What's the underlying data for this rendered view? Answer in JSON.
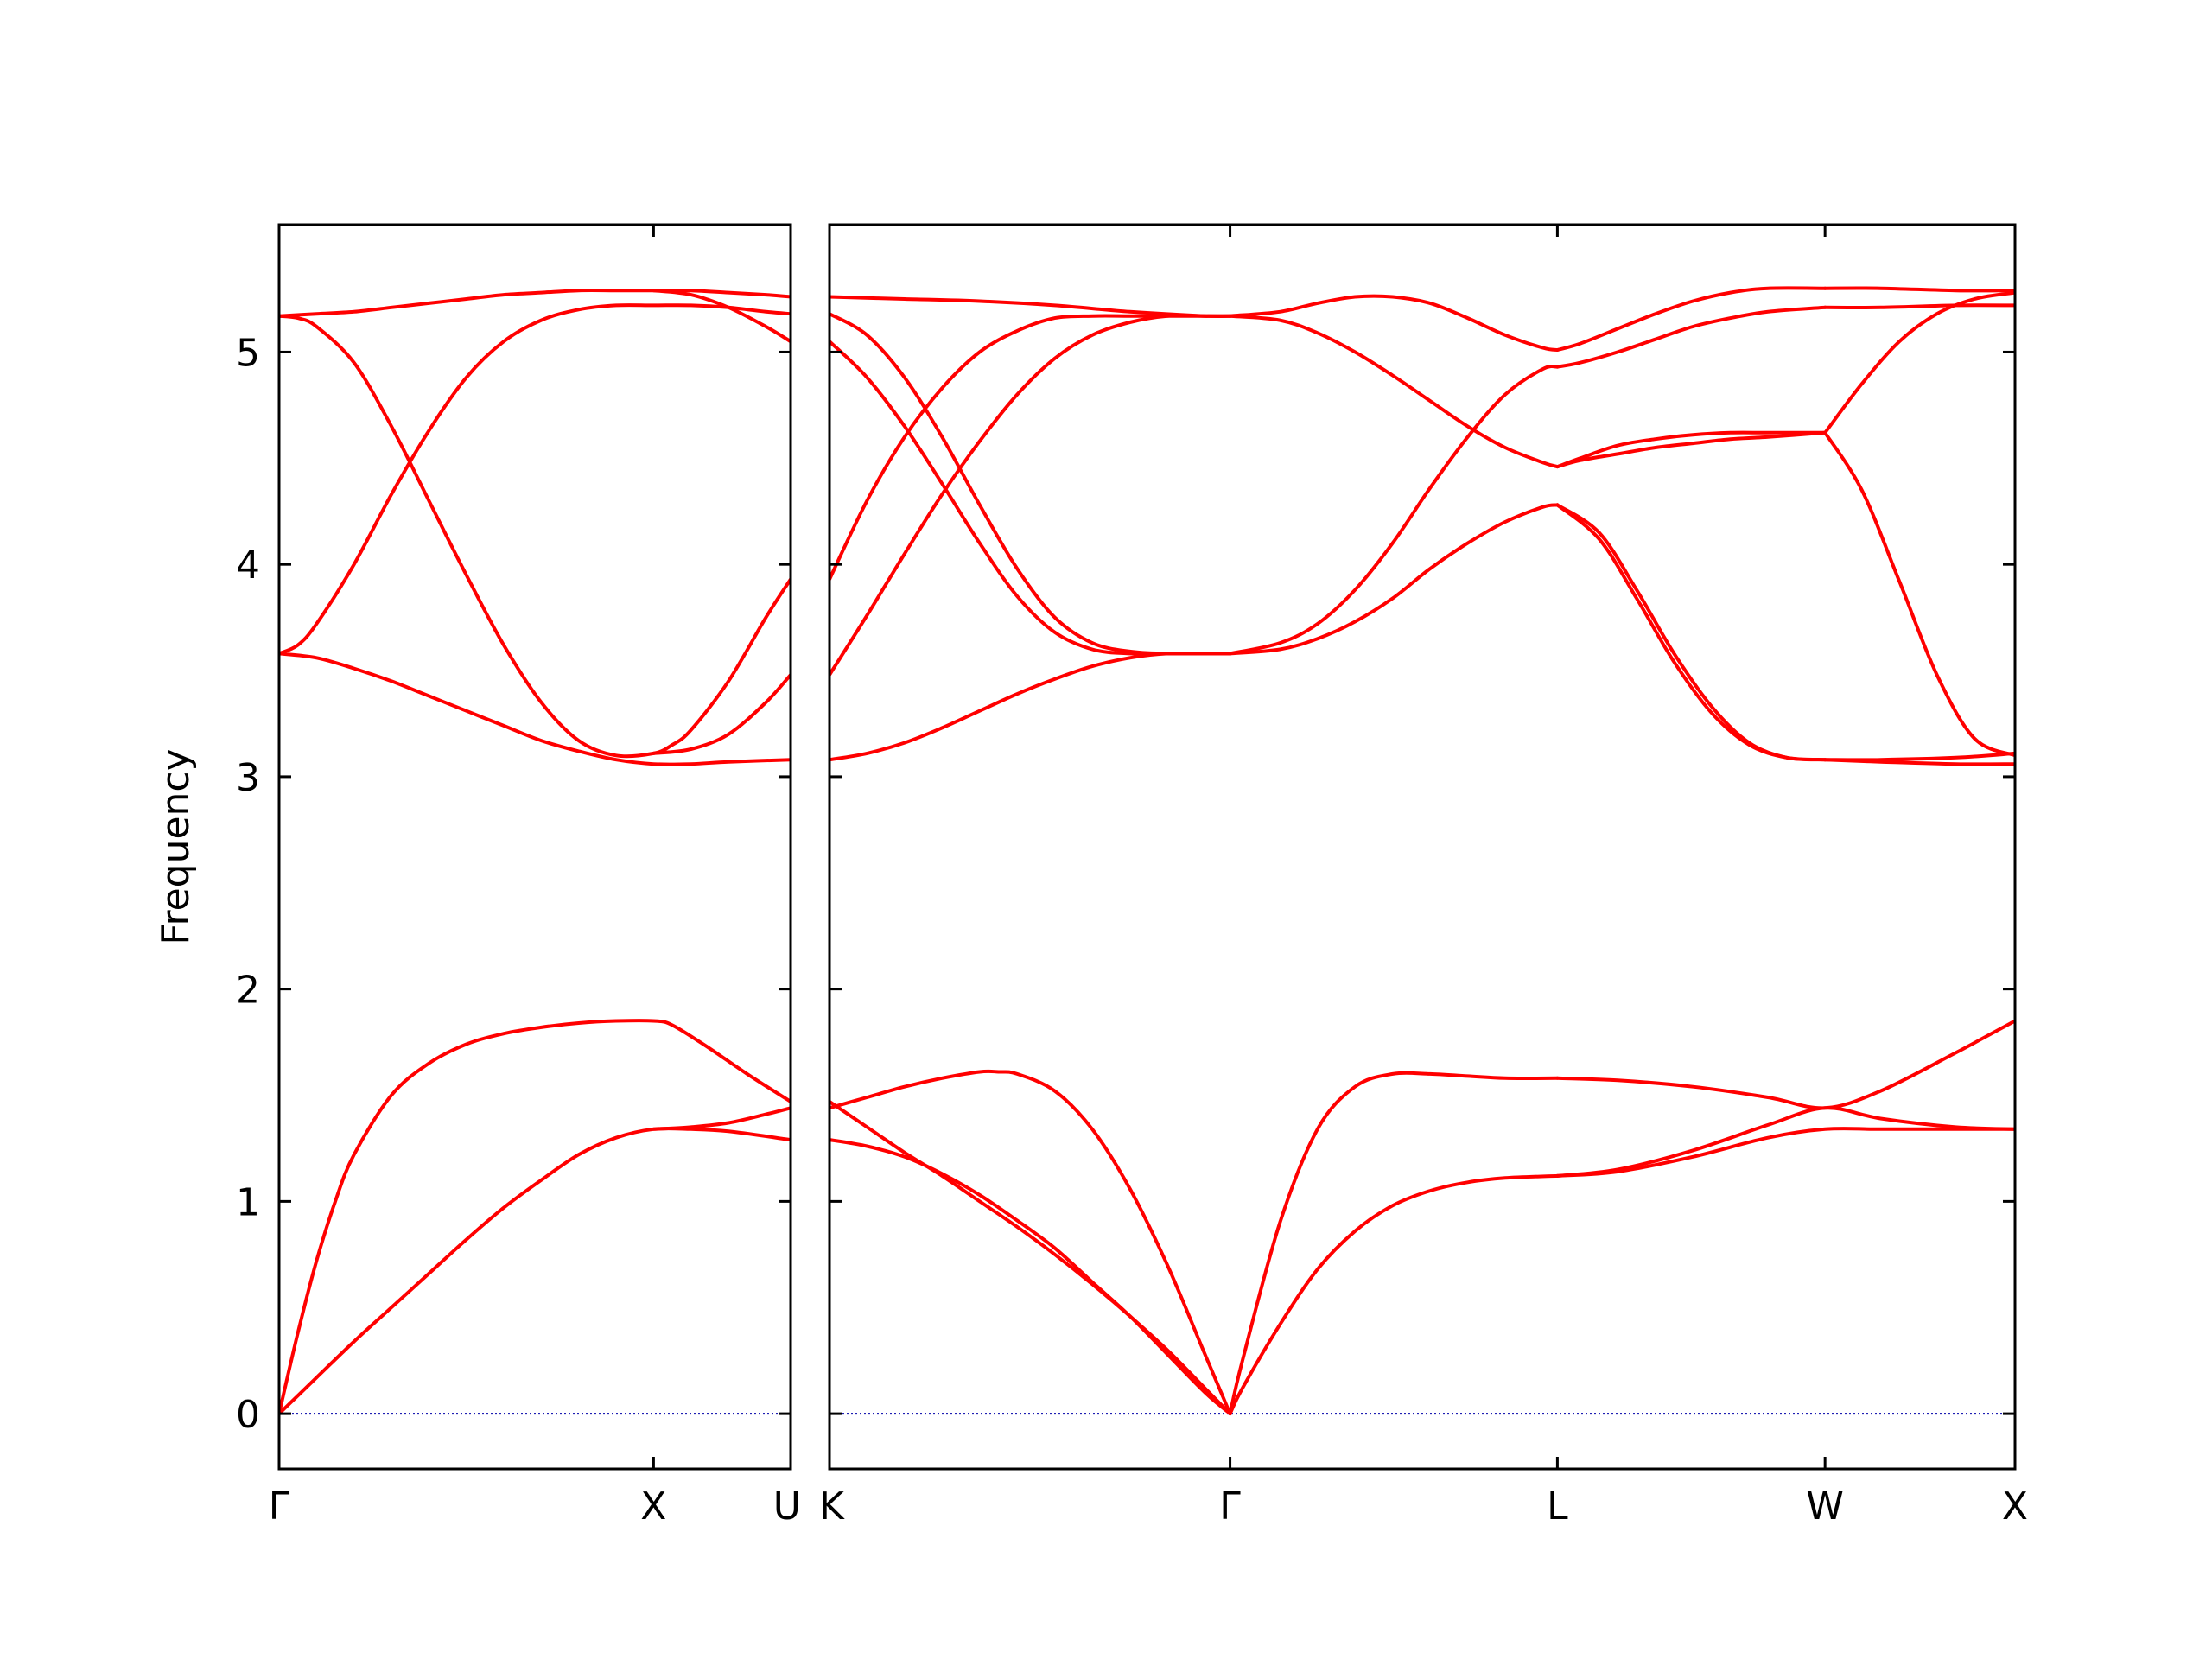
{
  "chart_data": {
    "type": "line",
    "title": "",
    "ylabel": "Frequency",
    "xlabel": "",
    "ylim": [
      -0.26,
      5.6
    ],
    "y_ticks": [
      "0",
      "1",
      "2",
      "3",
      "4",
      "5"
    ],
    "line_color": "#ff0000",
    "zero_line_color": "#0000aa",
    "panels": [
      {
        "xlim": [
          0,
          1.366
        ],
        "high_symmetry_points": [
          {
            "label": "Γ",
            "x": 0
          },
          {
            "label": "X",
            "x": 1.0
          },
          {
            "label": "U",
            "x": 1.366
          }
        ],
        "series": [
          {
            "x": [
              0,
              0.1,
              0.2,
              0.3,
              0.4,
              0.5,
              0.6,
              0.7,
              0.8,
              0.9,
              1.0,
              1.1,
              1.2,
              1.366
            ],
            "values": [
              0,
              0.17,
              0.34,
              0.5,
              0.66,
              0.82,
              0.97,
              1.1,
              1.22,
              1.3,
              1.34,
              1.34,
              1.33,
              1.29
            ]
          },
          {
            "x": [
              0,
              0.05,
              0.1,
              0.15,
              0.2,
              0.3,
              0.4,
              0.5,
              0.6,
              0.7,
              0.8,
              0.9,
              1.0,
              1.05,
              1.15,
              1.25,
              1.366
            ],
            "values": [
              0,
              0.38,
              0.72,
              1.0,
              1.22,
              1.5,
              1.65,
              1.74,
              1.79,
              1.82,
              1.84,
              1.85,
              1.85,
              1.83,
              1.72,
              1.6,
              1.47
            ]
          },
          {
            "x": [
              1.0,
              1.1,
              1.2,
              1.3,
              1.366
            ],
            "values": [
              1.34,
              1.35,
              1.37,
              1.41,
              1.44
            ]
          },
          {
            "x": [
              0,
              0.1,
              0.2,
              0.3,
              0.4,
              0.5,
              0.6,
              0.7,
              0.8,
              0.9,
              1.0,
              1.1,
              1.2,
              1.366
            ],
            "values": [
              3.58,
              3.56,
              3.51,
              3.45,
              3.38,
              3.31,
              3.24,
              3.17,
              3.12,
              3.08,
              3.06,
              3.06,
              3.07,
              3.08
            ]
          },
          {
            "x": [
              0,
              0.05,
              0.1,
              0.2,
              0.3,
              0.4,
              0.5,
              0.6,
              0.7,
              0.8,
              0.9,
              1.0,
              1.1,
              1.2,
              1.3,
              1.366
            ],
            "values": [
              3.58,
              3.62,
              3.72,
              4.0,
              4.33,
              4.63,
              4.88,
              5.05,
              5.15,
              5.2,
              5.22,
              5.22,
              5.22,
              5.21,
              5.19,
              5.18
            ]
          },
          {
            "x": [
              0,
              0.05,
              0.1,
              0.2,
              0.3,
              0.4,
              0.5,
              0.6,
              0.7,
              0.8,
              0.9,
              1.0,
              1.05,
              1.1,
              1.2,
              1.3,
              1.366
            ],
            "values": [
              5.17,
              5.16,
              5.12,
              4.95,
              4.65,
              4.3,
              3.95,
              3.62,
              3.35,
              3.17,
              3.1,
              3.11,
              3.15,
              3.22,
              3.45,
              3.75,
              3.93
            ]
          },
          {
            "x": [
              1.0,
              1.1,
              1.2,
              1.3,
              1.366
            ],
            "values": [
              3.11,
              3.13,
              3.2,
              3.35,
              3.48
            ]
          },
          {
            "x": [
              0,
              0.1,
              0.2,
              0.3,
              0.4,
              0.5,
              0.6,
              0.7,
              0.8,
              0.9,
              1.0,
              1.1,
              1.2,
              1.3,
              1.366
            ],
            "values": [
              5.17,
              5.18,
              5.19,
              5.21,
              5.23,
              5.25,
              5.27,
              5.28,
              5.29,
              5.29,
              5.29,
              5.29,
              5.28,
              5.27,
              5.26
            ]
          },
          {
            "x": [
              1.0,
              1.1,
              1.2,
              1.3,
              1.366
            ],
            "values": [
              5.29,
              5.27,
              5.21,
              5.12,
              5.05
            ]
          }
        ]
      },
      {
        "xlim": [
          0,
          3.158
        ],
        "high_symmetry_points": [
          {
            "label": "K",
            "x": 0
          },
          {
            "label": "Γ",
            "x": 1.067
          },
          {
            "label": "L",
            "x": 1.939
          },
          {
            "label": "W",
            "x": 2.652
          },
          {
            "label": "X",
            "x": 3.158
          }
        ],
        "series": [
          {
            "x": [
              0,
              0.1,
              0.2,
              0.3,
              0.4,
              0.5,
              0.6,
              0.7,
              0.8,
              0.9,
              1.0,
              1.067
            ],
            "values": [
              1.29,
              1.26,
              1.21,
              1.13,
              1.03,
              0.91,
              0.78,
              0.62,
              0.46,
              0.28,
              0.1,
              0
            ]
          },
          {
            "x": [
              0,
              0.1,
              0.2,
              0.3,
              0.4,
              0.5,
              0.6,
              0.7,
              0.8,
              0.9,
              1.0,
              1.067
            ],
            "values": [
              1.47,
              1.35,
              1.23,
              1.12,
              1.0,
              0.88,
              0.75,
              0.61,
              0.46,
              0.3,
              0.12,
              0
            ]
          },
          {
            "x": [
              0,
              0.1,
              0.2,
              0.3,
              0.4,
              0.45,
              0.5,
              0.6,
              0.7,
              0.8,
              0.9,
              1.0,
              1.067
            ],
            "values": [
              1.44,
              1.49,
              1.54,
              1.58,
              1.61,
              1.61,
              1.6,
              1.52,
              1.34,
              1.06,
              0.7,
              0.28,
              0
            ]
          },
          {
            "x": [
              1.067,
              1.1,
              1.2,
              1.3,
              1.4,
              1.5,
              1.6,
              1.7,
              1.8,
              1.939
            ],
            "values": [
              0,
              0.12,
              0.42,
              0.68,
              0.86,
              0.98,
              1.05,
              1.09,
              1.11,
              1.12
            ]
          },
          {
            "x": [
              1.067,
              1.1,
              1.2,
              1.3,
              1.4,
              1.5,
              1.6,
              1.7,
              1.8,
              1.939
            ],
            "values": [
              0,
              0.25,
              0.9,
              1.34,
              1.54,
              1.6,
              1.6,
              1.59,
              1.58,
              1.58
            ]
          },
          {
            "x": [
              1.939,
              2.1,
              2.3,
              2.5,
              2.652,
              2.8,
              3.0,
              3.158
            ],
            "values": [
              1.12,
              1.14,
              1.21,
              1.3,
              1.34,
              1.34,
              1.34,
              1.34
            ]
          },
          {
            "x": [
              1.939,
              2.1,
              2.3,
              2.5,
              2.652,
              2.8,
              3.0,
              3.158
            ],
            "values": [
              1.12,
              1.15,
              1.24,
              1.36,
              1.44,
              1.39,
              1.35,
              1.34
            ]
          },
          {
            "x": [
              1.939,
              2.1,
              2.3,
              2.5,
              2.652,
              2.8,
              3.0,
              3.158
            ],
            "values": [
              1.58,
              1.57,
              1.54,
              1.49,
              1.44,
              1.52,
              1.7,
              1.85
            ]
          },
          {
            "x": [
              0,
              0.1,
              0.2,
              0.3,
              0.4,
              0.5,
              0.6,
              0.7,
              0.8,
              0.9,
              1.0,
              1.067
            ],
            "values": [
              3.08,
              3.11,
              3.16,
              3.23,
              3.31,
              3.39,
              3.46,
              3.52,
              3.56,
              3.58,
              3.58,
              3.58
            ]
          },
          {
            "x": [
              0,
              0.1,
              0.2,
              0.3,
              0.4,
              0.5,
              0.6,
              0.7,
              0.8,
              0.9,
              1.0,
              1.067
            ],
            "values": [
              3.48,
              3.76,
              4.05,
              4.33,
              4.58,
              4.8,
              4.97,
              5.08,
              5.14,
              5.17,
              5.17,
              5.17
            ]
          },
          {
            "x": [
              0,
              0.1,
              0.2,
              0.3,
              0.4,
              0.5,
              0.6,
              0.7,
              0.8,
              0.9,
              1.0,
              1.067
            ],
            "values": [
              3.93,
              4.3,
              4.6,
              4.83,
              5.0,
              5.1,
              5.16,
              5.17,
              5.17,
              5.17,
              5.17,
              5.17
            ]
          },
          {
            "x": [
              0,
              0.1,
              0.2,
              0.3,
              0.4,
              0.5,
              0.6,
              0.7,
              0.8,
              0.9,
              1.0,
              1.067
            ],
            "values": [
              5.05,
              4.88,
              4.65,
              4.38,
              4.1,
              3.85,
              3.68,
              3.6,
              3.58,
              3.58,
              3.58,
              3.58
            ]
          },
          {
            "x": [
              0,
              0.1,
              0.2,
              0.3,
              0.4,
              0.5,
              0.6,
              0.7,
              0.8,
              0.9,
              1.0,
              1.067
            ],
            "values": [
              5.18,
              5.08,
              4.88,
              4.6,
              4.28,
              3.98,
              3.75,
              3.63,
              3.59,
              3.58,
              3.58,
              3.58
            ]
          },
          {
            "x": [
              0,
              0.2,
              0.4,
              0.6,
              0.8,
              1.0,
              1.067
            ],
            "values": [
              5.26,
              5.25,
              5.24,
              5.22,
              5.19,
              5.17,
              5.17
            ]
          },
          {
            "x": [
              1.067,
              1.2,
              1.3,
              1.4,
              1.5,
              1.6,
              1.7,
              1.8,
              1.9,
              1.939
            ],
            "values": [
              3.58,
              3.6,
              3.65,
              3.73,
              3.84,
              3.98,
              4.1,
              4.2,
              4.27,
              4.28
            ]
          },
          {
            "x": [
              1.067,
              1.2,
              1.3,
              1.4,
              1.5,
              1.6,
              1.7,
              1.8,
              1.9,
              1.939
            ],
            "values": [
              3.58,
              3.63,
              3.72,
              3.88,
              4.1,
              4.36,
              4.6,
              4.8,
              4.92,
              4.93
            ]
          },
          {
            "x": [
              1.067,
              1.2,
              1.3,
              1.4,
              1.5,
              1.6,
              1.7,
              1.8,
              1.9,
              1.939
            ],
            "values": [
              5.17,
              5.15,
              5.09,
              5.0,
              4.89,
              4.77,
              4.65,
              4.55,
              4.48,
              4.46
            ]
          },
          {
            "x": [
              1.067,
              1.2,
              1.3,
              1.4,
              1.5,
              1.6,
              1.7,
              1.8,
              1.9,
              1.939
            ],
            "values": [
              5.17,
              5.19,
              5.23,
              5.26,
              5.26,
              5.23,
              5.16,
              5.08,
              5.02,
              5.01
            ]
          },
          {
            "x": [
              1.939,
              2.05,
              2.15,
              2.25,
              2.35,
              2.45,
              2.55,
              2.652
            ],
            "values": [
              4.28,
              4.15,
              3.88,
              3.58,
              3.33,
              3.16,
              3.09,
              3.08
            ]
          },
          {
            "x": [
              1.939,
              2.05,
              2.15,
              2.25,
              2.35,
              2.45,
              2.55,
              2.652
            ],
            "values": [
              4.28,
              4.12,
              3.84,
              3.54,
              3.3,
              3.15,
              3.09,
              3.08
            ]
          },
          {
            "x": [
              1.939,
              2.0,
              2.1,
              2.2,
              2.3,
              2.4,
              2.5,
              2.652
            ],
            "values": [
              4.46,
              4.5,
              4.56,
              4.59,
              4.61,
              4.62,
              4.62,
              4.62
            ]
          },
          {
            "x": [
              1.939,
              2.0,
              2.1,
              2.2,
              2.3,
              2.4,
              2.5,
              2.652
            ],
            "values": [
              4.46,
              4.49,
              4.52,
              4.55,
              4.57,
              4.59,
              4.6,
              4.62
            ]
          },
          {
            "x": [
              1.939,
              2.0,
              2.1,
              2.2,
              2.3,
              2.4,
              2.5,
              2.652
            ],
            "values": [
              4.93,
              4.95,
              5.0,
              5.06,
              5.12,
              5.16,
              5.19,
              5.21
            ]
          },
          {
            "x": [
              1.939,
              2.0,
              2.1,
              2.2,
              2.3,
              2.4,
              2.5,
              2.652
            ],
            "values": [
              5.01,
              5.04,
              5.11,
              5.18,
              5.24,
              5.28,
              5.3,
              5.3
            ]
          },
          {
            "x": [
              2.652,
              2.8,
              3.0,
              3.158
            ],
            "values": [
              3.08,
              3.08,
              3.09,
              3.11
            ]
          },
          {
            "x": [
              2.652,
              2.8,
              3.0,
              3.158
            ],
            "values": [
              3.08,
              3.07,
              3.06,
              3.06
            ]
          },
          {
            "x": [
              2.652,
              2.75,
              2.85,
              2.95,
              3.05,
              3.158
            ],
            "values": [
              4.62,
              4.35,
              3.92,
              3.48,
              3.18,
              3.1
            ]
          },
          {
            "x": [
              2.652,
              2.75,
              2.85,
              2.95,
              3.05,
              3.158
            ],
            "values": [
              4.62,
              4.85,
              5.05,
              5.18,
              5.25,
              5.28
            ]
          },
          {
            "x": [
              2.652,
              2.8,
              3.0,
              3.158
            ],
            "values": [
              5.21,
              5.21,
              5.22,
              5.22
            ]
          },
          {
            "x": [
              2.652,
              2.8,
              3.0,
              3.158
            ],
            "values": [
              5.3,
              5.3,
              5.29,
              5.29
            ]
          }
        ]
      }
    ]
  }
}
